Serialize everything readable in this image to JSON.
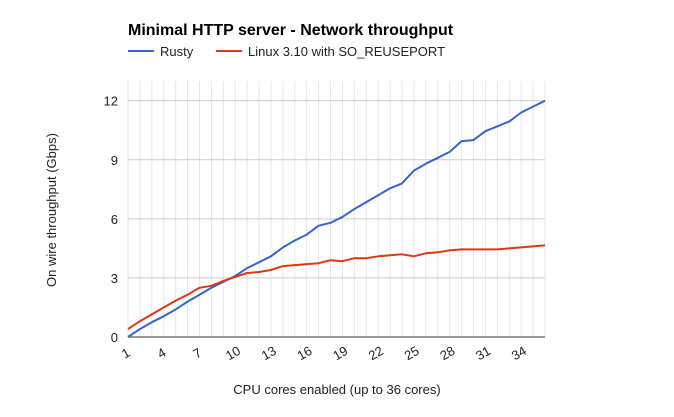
{
  "chart_data": {
    "type": "line",
    "title": "Minimal HTTP server - Network throughput",
    "xlabel": "CPU cores enabled (up to 36 cores)",
    "ylabel": "On wire throughput (Gbps)",
    "xlim": [
      1,
      36
    ],
    "ylim": [
      0,
      13
    ],
    "x_ticks": [
      1,
      4,
      7,
      10,
      13,
      16,
      19,
      22,
      25,
      28,
      31,
      34
    ],
    "y_ticks": [
      0,
      3,
      6,
      9,
      12
    ],
    "grid": true,
    "legend_position": "top",
    "x": [
      1,
      2,
      3,
      4,
      5,
      6,
      7,
      8,
      9,
      10,
      11,
      12,
      13,
      14,
      15,
      16,
      17,
      18,
      19,
      20,
      21,
      22,
      23,
      24,
      25,
      26,
      27,
      28,
      29,
      30,
      31,
      32,
      33,
      34,
      35,
      36
    ],
    "series": [
      {
        "name": "Rusty",
        "color": "#3366cc",
        "values": [
          0.0,
          0.4,
          0.75,
          1.05,
          1.4,
          1.8,
          2.15,
          2.5,
          2.8,
          3.1,
          3.5,
          3.8,
          4.1,
          4.55,
          4.9,
          5.2,
          5.65,
          5.8,
          6.1,
          6.5,
          6.85,
          7.2,
          7.55,
          7.8,
          8.45,
          8.8,
          9.1,
          9.4,
          9.95,
          10.0,
          10.45,
          10.7,
          10.95,
          11.4,
          11.7,
          12.0
        ]
      },
      {
        "name": "Linux 3.10 with SO_REUSEPORT",
        "color": "#dc3912",
        "values": [
          0.4,
          0.8,
          1.15,
          1.5,
          1.85,
          2.15,
          2.5,
          2.6,
          2.85,
          3.05,
          3.25,
          3.3,
          3.4,
          3.6,
          3.65,
          3.7,
          3.75,
          3.9,
          3.85,
          4.0,
          4.0,
          4.1,
          4.15,
          4.2,
          4.1,
          4.25,
          4.3,
          4.4,
          4.45,
          4.45,
          4.45,
          4.45,
          4.5,
          4.55,
          4.6,
          4.65
        ]
      }
    ]
  }
}
